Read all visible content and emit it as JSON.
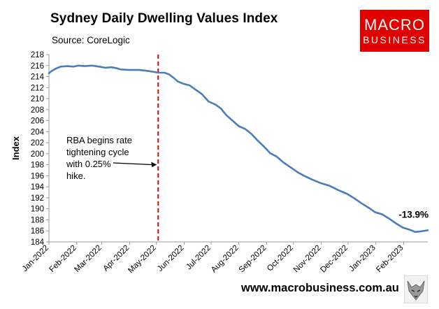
{
  "header": {
    "title": "Sydney Daily Dwelling Values Index",
    "subtitle": "Source: CoreLogic"
  },
  "logo": {
    "line1": "MACRO",
    "line2": "BUSINESS"
  },
  "footer": {
    "url": "www.macrobusiness.com.au"
  },
  "colors": {
    "series": "#4a7ebb",
    "marker": "#e00000",
    "logo_bg": "#e00000"
  },
  "chart_data": {
    "type": "line",
    "title": "Sydney Daily Dwelling Values Index",
    "xlabel": "",
    "ylabel": "Index",
    "ylim": [
      184,
      218
    ],
    "yticks": [
      184,
      186,
      188,
      190,
      192,
      194,
      196,
      198,
      200,
      202,
      204,
      206,
      208,
      210,
      212,
      214,
      216,
      218
    ],
    "xlim": [
      "2022-01-01",
      "2023-02-28"
    ],
    "xticks": [
      "Jan-2022",
      "Feb-2022",
      "Mar-2022",
      "Apr-2022",
      "May-2022",
      "Jun-2022",
      "Jul-2022",
      "Aug-2022",
      "Sep-2022",
      "Oct-2022",
      "Nov-2022",
      "Dec-2022",
      "Jan-2023",
      "Feb-2023"
    ],
    "grid": false,
    "series": [
      {
        "name": "Sydney Daily Dwelling Values Index",
        "points": [
          [
            "2022-01-01",
            214.6
          ],
          [
            "2022-01-04",
            215.0
          ],
          [
            "2022-01-08",
            215.4
          ],
          [
            "2022-01-14",
            215.8
          ],
          [
            "2022-01-22",
            215.9
          ],
          [
            "2022-01-28",
            215.8
          ],
          [
            "2022-02-03",
            216.0
          ],
          [
            "2022-02-10",
            215.9
          ],
          [
            "2022-02-18",
            216.0
          ],
          [
            "2022-02-26",
            215.8
          ],
          [
            "2022-03-05",
            215.6
          ],
          [
            "2022-03-12",
            215.7
          ],
          [
            "2022-03-18",
            215.5
          ],
          [
            "2022-03-22",
            215.3
          ],
          [
            "2022-04-01",
            215.2
          ],
          [
            "2022-04-12",
            215.2
          ],
          [
            "2022-04-22",
            215.0
          ],
          [
            "2022-04-30",
            214.8
          ],
          [
            "2022-05-03",
            214.7
          ],
          [
            "2022-05-10",
            214.7
          ],
          [
            "2022-05-15",
            214.4
          ],
          [
            "2022-05-20",
            213.8
          ],
          [
            "2022-05-25",
            213.1
          ],
          [
            "2022-05-31",
            212.7
          ],
          [
            "2022-06-07",
            212.4
          ],
          [
            "2022-06-14",
            211.6
          ],
          [
            "2022-06-21",
            210.8
          ],
          [
            "2022-06-28",
            209.5
          ],
          [
            "2022-07-06",
            208.9
          ],
          [
            "2022-07-12",
            208.2
          ],
          [
            "2022-07-18",
            207.0
          ],
          [
            "2022-07-25",
            206.0
          ],
          [
            "2022-08-01",
            205.0
          ],
          [
            "2022-08-08",
            204.5
          ],
          [
            "2022-08-15",
            203.6
          ],
          [
            "2022-08-22",
            202.4
          ],
          [
            "2022-08-29",
            201.3
          ],
          [
            "2022-09-05",
            200.1
          ],
          [
            "2022-09-12",
            199.5
          ],
          [
            "2022-09-20",
            198.4
          ],
          [
            "2022-09-28",
            197.5
          ],
          [
            "2022-10-06",
            196.6
          ],
          [
            "2022-10-14",
            195.9
          ],
          [
            "2022-10-22",
            195.3
          ],
          [
            "2022-10-31",
            194.7
          ],
          [
            "2022-11-10",
            194.2
          ],
          [
            "2022-11-20",
            193.4
          ],
          [
            "2022-11-30",
            192.7
          ],
          [
            "2022-12-08",
            191.9
          ],
          [
            "2022-12-16",
            191.0
          ],
          [
            "2022-12-24",
            190.2
          ],
          [
            "2022-12-31",
            189.4
          ],
          [
            "2023-01-08",
            189.0
          ],
          [
            "2023-01-16",
            188.2
          ],
          [
            "2023-01-24",
            187.3
          ],
          [
            "2023-01-31",
            186.6
          ],
          [
            "2023-02-08",
            186.2
          ],
          [
            "2023-02-14",
            185.8
          ],
          [
            "2023-02-20",
            185.9
          ],
          [
            "2023-02-28",
            186.1
          ]
        ]
      }
    ],
    "vertical_marker": {
      "date": "2022-05-03",
      "style": "dashed"
    },
    "annotations": [
      {
        "name": "rba-annotation",
        "lines": [
          "RBA begins rate",
          "tightening cycle",
          "with 0.25%",
          "hike."
        ],
        "arrow_to": {
          "date": "2022-05-03",
          "value": 198
        }
      },
      {
        "name": "decline-annotation",
        "text": "-13.9%"
      }
    ]
  }
}
